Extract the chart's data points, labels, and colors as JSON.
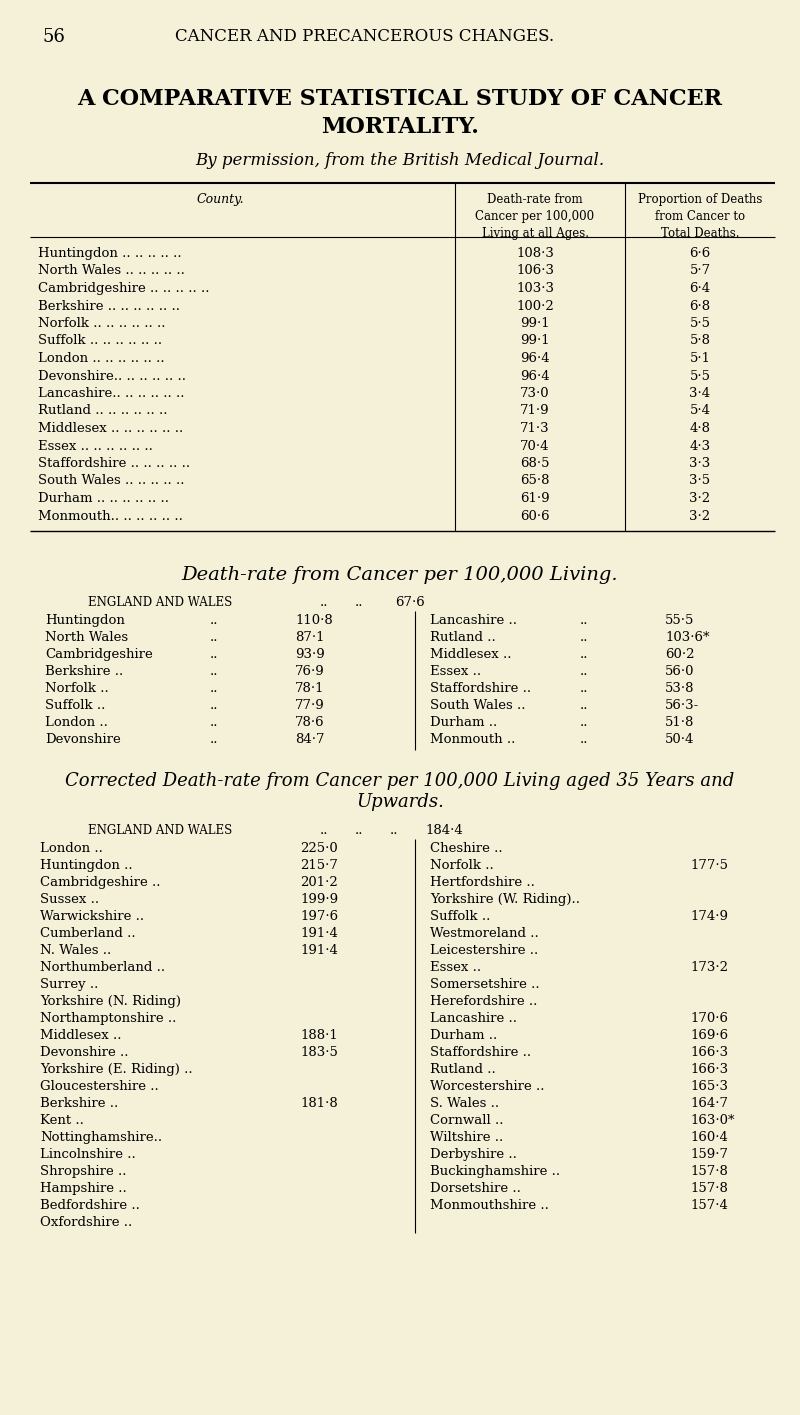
{
  "bg_color": "#f5f0d8",
  "page_header_number": "56",
  "page_header_title": "CANCER AND PRECANCEROUS CHANGES.",
  "main_title_line1": "A COMPARATIVE STATISTICAL STUDY OF CANCER",
  "main_title_line2": "MORTALITY.",
  "subtitle": "By permission, from the British Medical Journal.",
  "table1_col_county": "County.",
  "table1_col2": "Death-rate from\nCancer per 100,000\nLiving at all Ages.",
  "table1_col3": "Proportion of Deaths\nfrom Cancer to\nTotal Deaths.",
  "table1_rows": [
    [
      "Huntingdon .. .. .. .. ..",
      "108·3",
      "6·6"
    ],
    [
      "North Wales .. .. .. .. ..",
      "106·3",
      "5·7"
    ],
    [
      "Cambridgeshire .. .. .. .. ..",
      "103·3",
      "6·4"
    ],
    [
      "Berkshire .. .. .. .. .. ..",
      "100·2",
      "6·8"
    ],
    [
      "Norfolk .. .. .. .. .. ..",
      "99·1",
      "5·5"
    ],
    [
      "Suffolk .. .. .. .. .. ..",
      "99·1",
      "5·8"
    ],
    [
      "London .. .. .. .. .. ..",
      "96·4",
      "5·1"
    ],
    [
      "Devonshire.. .. .. .. .. ..",
      "96·4",
      "5·5"
    ],
    [
      "Lancashire.. .. .. .. .. ..",
      "73·0",
      "3·4"
    ],
    [
      "Rutland .. .. .. .. .. ..",
      "71·9",
      "5·4"
    ],
    [
      "Middlesex .. .. .. .. .. ..",
      "71·3",
      "4·8"
    ],
    [
      "Essex .. .. .. .. .. ..",
      "70·4",
      "4·3"
    ],
    [
      "Staffordshire .. .. .. .. ..",
      "68·5",
      "3·3"
    ],
    [
      "South Wales .. .. .. .. ..",
      "65·8",
      "3·5"
    ],
    [
      "Durham .. .. .. .. .. ..",
      "61·9",
      "3·2"
    ],
    [
      "Monmouth.. .. .. .. .. ..",
      "60·6",
      "3·2"
    ]
  ],
  "section2_title": "Death-rate from Cancer per 100,000 Living.",
  "section2_ew_label": "England and Wales",
  "section2_ew_dots": ".. ..",
  "section2_ew_value": "67·6",
  "section2_left": [
    [
      "Huntingdon",
      "..",
      "110·8"
    ],
    [
      "North Wales",
      "..",
      "87·1"
    ],
    [
      "Cambridgeshire",
      "..",
      "93·9"
    ],
    [
      "Berkshire ..",
      "..",
      "76·9"
    ],
    [
      "Norfolk ..",
      "..",
      "78·1"
    ],
    [
      "Suffolk ..",
      "..",
      "77·9"
    ],
    [
      "London ..",
      "..",
      "78·6"
    ],
    [
      "Devonshire",
      "..",
      "84·7"
    ]
  ],
  "section2_right": [
    [
      "Lancashire ..",
      "..",
      "55·5"
    ],
    [
      "Rutland ..",
      "..",
      "103·6*"
    ],
    [
      "Middlesex ..",
      "..",
      "60·2"
    ],
    [
      "Essex ..",
      "..",
      "56·0"
    ],
    [
      "Staffordshire ..",
      "..",
      "53·8"
    ],
    [
      "South Wales ..",
      "..",
      "56·3-"
    ],
    [
      "Durham ..",
      "..",
      "51·8"
    ],
    [
      "Monmouth ..",
      "..",
      "50·4"
    ]
  ],
  "section3_title_line1": "Corrected Death-rate from Cancer per 100,000 Living aged 35 Years and",
  "section3_title_line2": "Upwards.",
  "section3_ew_label": "England and Wales",
  "section3_ew_value": "184·4",
  "section3_left": [
    [
      "London ..",
      "225·0"
    ],
    [
      "Huntingdon ..",
      "215·7"
    ],
    [
      "Cambridgeshire ..",
      "201·2"
    ],
    [
      "Sussex ..",
      "199·9"
    ],
    [
      "Warwickshire ..",
      "197·6"
    ],
    [
      "Cumberland ..",
      "191·4"
    ],
    [
      "N. Wales ..",
      "191·4"
    ],
    [
      "Northumberland ..",
      ""
    ],
    [
      "Surrey ..",
      ""
    ],
    [
      "Yorkshire (N. Riding)",
      ""
    ],
    [
      "Northamptonshire ..",
      ""
    ],
    [
      "Middlesex ..",
      "188·1"
    ],
    [
      "Devonshire ..",
      "183·5"
    ],
    [
      "Yorkshire (E. Riding) ..",
      ""
    ],
    [
      "Gloucestershire ..",
      ""
    ],
    [
      "Berkshire ..",
      "181·8"
    ],
    [
      "Kent ..",
      ""
    ],
    [
      "Nottinghamshire..",
      ""
    ],
    [
      "Lincolnshire ..",
      ""
    ],
    [
      "Shropshire ..",
      ""
    ],
    [
      "Hampshire ..",
      ""
    ],
    [
      "Bedfordshire ..",
      ""
    ],
    [
      "Oxfordshire ..",
      ""
    ]
  ],
  "section3_right": [
    [
      "Cheshire ..",
      ""
    ],
    [
      "Norfolk ..",
      "177·5"
    ],
    [
      "Hertfordshire ..",
      ""
    ],
    [
      "Yorkshire (W. Riding)..",
      ""
    ],
    [
      "Suffolk ..",
      "174·9"
    ],
    [
      "Westmoreland ..",
      ""
    ],
    [
      "Leicestershire ..",
      ""
    ],
    [
      "Essex ..",
      "173·2"
    ],
    [
      "Somersetshire ..",
      ""
    ],
    [
      "Herefordshire ..",
      ""
    ],
    [
      "Lancashire ..",
      "170·6"
    ],
    [
      "Durham ..",
      "169·6"
    ],
    [
      "Staffordshire ..",
      "166·3"
    ],
    [
      "Rutland ..",
      "166·3"
    ],
    [
      "Worcestershire ..",
      "165·3"
    ],
    [
      "S. Wales ..",
      "164·7"
    ],
    [
      "Cornwall ..",
      "163·0*"
    ],
    [
      "Wiltshire ..",
      "160·4"
    ],
    [
      "Derbyshire ..",
      "159·7"
    ],
    [
      "Buckinghamshire ..",
      "157·8"
    ],
    [
      "Dorsetshire ..",
      "157·8"
    ],
    [
      "Monmouthshire ..",
      "157·4"
    ]
  ]
}
